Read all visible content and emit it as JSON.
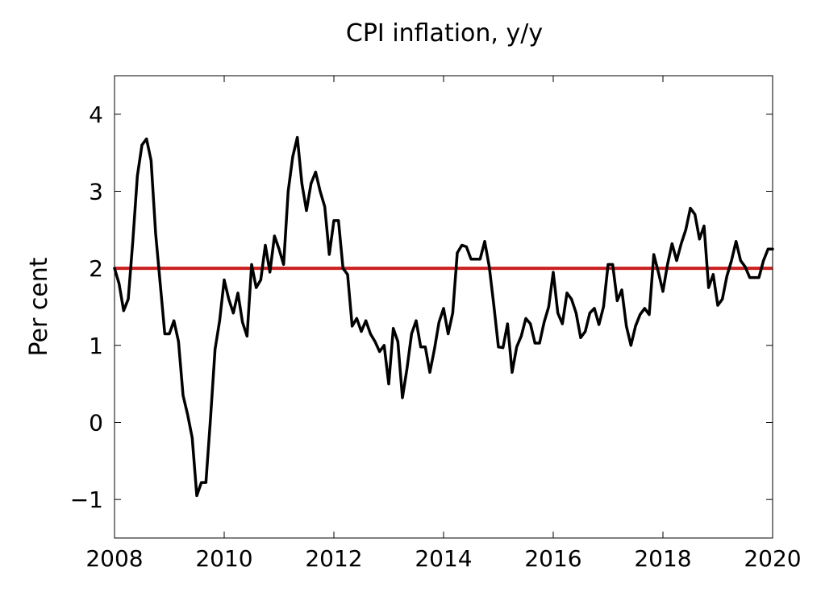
{
  "chart_data": {
    "type": "line",
    "title": "CPI inflation, y/y",
    "xlabel": "",
    "ylabel": "Per cent",
    "xlim": [
      2008,
      2020
    ],
    "ylim": [
      -1.5,
      4.5
    ],
    "x_ticks": [
      "2008",
      "2010",
      "2012",
      "2014",
      "2016",
      "2018",
      "2020"
    ],
    "y_ticks": [
      "−1",
      "0",
      "1",
      "2",
      "3",
      "4"
    ],
    "grid": false,
    "legend": "none",
    "series": [
      {
        "color": "#000000",
        "start_year": 2008,
        "points_per_year": 12,
        "values": [
          2.0,
          1.8,
          1.45,
          1.6,
          2.35,
          3.2,
          3.6,
          3.68,
          3.4,
          2.45,
          1.8,
          1.15,
          1.15,
          1.32,
          1.05,
          0.35,
          0.1,
          -0.2,
          -0.95,
          -0.78,
          -0.78,
          0.05,
          0.95,
          1.32,
          1.85,
          1.6,
          1.42,
          1.68,
          1.3,
          1.12,
          2.05,
          1.75,
          1.85,
          2.3,
          1.95,
          2.42,
          2.25,
          2.05,
          3.0,
          3.45,
          3.7,
          3.1,
          2.75,
          3.1,
          3.25,
          3.0,
          2.8,
          2.18,
          2.62,
          2.62,
          2.0,
          1.92,
          1.25,
          1.35,
          1.18,
          1.32,
          1.15,
          1.05,
          0.92,
          1.0,
          0.5,
          1.22,
          1.05,
          0.32,
          0.7,
          1.15,
          1.32,
          0.98,
          0.98,
          0.65,
          0.95,
          1.3,
          1.48,
          1.15,
          1.42,
          2.2,
          2.3,
          2.28,
          2.12,
          2.12,
          2.12,
          2.35,
          2.02,
          1.52,
          0.98,
          0.97,
          1.28,
          0.65,
          0.98,
          1.12,
          1.35,
          1.28,
          1.03,
          1.03,
          1.3,
          1.5,
          1.95,
          1.42,
          1.28,
          1.68,
          1.6,
          1.42,
          1.1,
          1.18,
          1.42,
          1.48,
          1.27,
          1.5,
          2.05,
          2.05,
          1.58,
          1.72,
          1.25,
          1.0,
          1.25,
          1.4,
          1.48,
          1.4,
          2.18,
          1.95,
          1.7,
          2.05,
          2.32,
          2.1,
          2.32,
          2.5,
          2.78,
          2.7,
          2.38,
          2.55,
          1.75,
          1.92,
          1.52,
          1.6,
          1.9,
          2.1,
          2.35,
          2.1,
          2.02,
          1.88,
          1.88,
          1.88,
          2.1,
          2.25,
          2.25
        ]
      }
    ],
    "reference_lines": [
      {
        "y": 2,
        "color": "#cc1f1f"
      }
    ]
  }
}
